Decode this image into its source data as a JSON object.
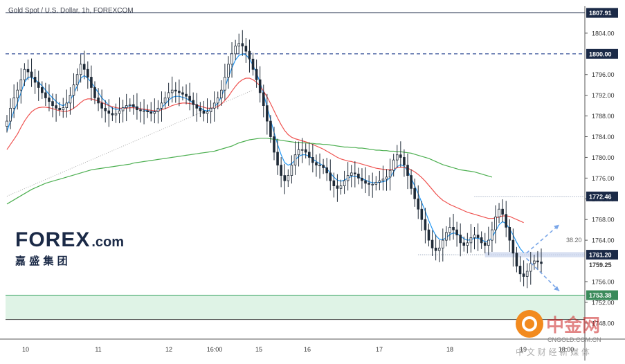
{
  "title": "Gold Spot / U.S. Dollar, 1h, FOREXCOM",
  "brand": {
    "logo_text": "FOREX",
    "logo_suffix": ".com",
    "logo_sub": "嘉 盛 集 团",
    "watermark_main": "中金网",
    "watermark_url": "CNGOLD.COM.CN",
    "watermark_sub": "中 文 财 经 新 媒 体"
  },
  "colors": {
    "bull": "#26a69a",
    "bear": "#26a69a",
    "candle": "#1f2a37",
    "ma_fast": "#2196f3",
    "ma_mid": "#ef5350",
    "ma_slow": "#4caf50",
    "level_box": "#b7e4c7",
    "accent_label": "#1b2a47"
  },
  "chart_data": {
    "type": "candlestick",
    "title": "Gold Spot / U.S. Dollar, 1h, FOREXCOM",
    "xlabel": "",
    "ylabel": "",
    "y_ticks": [
      1748.0,
      1752.0,
      1756.0,
      1759.25,
      1764.0,
      1768.0,
      1772.0,
      1776.0,
      1780.0,
      1784.0,
      1788.0,
      1792.0,
      1796.0,
      1800.0,
      1804.0,
      1807.91
    ],
    "x_ticks": [
      "10",
      "11",
      "12",
      "16:00",
      "15",
      "16",
      "17",
      "18",
      "19",
      "18:00"
    ],
    "ylim": [
      1744.9,
      1809.2
    ],
    "levels": [
      {
        "label": "1807.91",
        "value": 1807.91
      },
      {
        "label": "1800.00",
        "value": 1800.0
      },
      {
        "label": "1772.46",
        "value": 1772.46
      },
      {
        "label": "1761.20",
        "value": 1761.2
      },
      {
        "label": "1759.25",
        "value": 1759.25
      },
      {
        "label": "1753.38",
        "value": 1753.38
      }
    ],
    "annotations": [
      {
        "text": "38.20"
      }
    ],
    "support_zone": [
      1748.7,
      1753.38
    ],
    "close": [
      1787.0,
      1789.5,
      1791.5,
      1793.0,
      1795.0,
      1797.0,
      1796.5,
      1795.5,
      1794.5,
      1793.5,
      1792.5,
      1791.5,
      1790.8,
      1790.0,
      1789.5,
      1789.2,
      1789.6,
      1790.5,
      1792.0,
      1794.0,
      1796.0,
      1798.0,
      1797.0,
      1795.5,
      1793.5,
      1791.5,
      1790.5,
      1789.5,
      1789.0,
      1788.5,
      1788.2,
      1788.5,
      1789.0,
      1789.6,
      1790.0,
      1790.2,
      1789.8,
      1789.2,
      1789.0,
      1789.0,
      1788.8,
      1788.5,
      1788.8,
      1789.5,
      1790.5,
      1791.5,
      1792.5,
      1793.0,
      1792.8,
      1792.5,
      1792.2,
      1791.8,
      1791.0,
      1790.2,
      1789.5,
      1789.0,
      1788.5,
      1788.8,
      1789.5,
      1790.5,
      1791.5,
      1793.0,
      1795.5,
      1798.0,
      1800.0,
      1801.5,
      1802.0,
      1801.5,
      1800.5,
      1799.0,
      1797.0,
      1795.0,
      1792.5,
      1790.0,
      1787.0,
      1784.0,
      1781.0,
      1778.5,
      1776.5,
      1775.5,
      1776.5,
      1778.5,
      1780.5,
      1781.5,
      1781.5,
      1781.0,
      1780.0,
      1779.0,
      1778.5,
      1778.5,
      1778.0,
      1777.0,
      1775.5,
      1774.5,
      1774.0,
      1774.5,
      1775.5,
      1776.5,
      1777.0,
      1776.8,
      1776.0,
      1775.5,
      1775.0,
      1774.8,
      1774.8,
      1775.2,
      1775.5,
      1775.8,
      1776.2,
      1777.5,
      1779.5,
      1780.5,
      1780.0,
      1778.5,
      1776.5,
      1774.0,
      1772.0,
      1770.0,
      1768.0,
      1766.0,
      1764.0,
      1762.5,
      1762.0,
      1762.5,
      1764.0,
      1765.5,
      1766.5,
      1766.0,
      1765.0,
      1763.5,
      1763.0,
      1763.5,
      1764.5,
      1765.0,
      1764.5,
      1763.5,
      1763.0,
      1764.0,
      1766.0,
      1768.5,
      1770.0,
      1769.0,
      1766.5,
      1764.0,
      1761.5,
      1759.0,
      1757.5,
      1757.0,
      1758.0,
      1759.5,
      1760.0,
      1759.8,
      1759.5
    ],
    "series": [
      {
        "name": "",
        "values": [
          1785.0,
          1787.0,
          1789.0,
          1790.5,
          1792.5,
          1794.5,
          1795.5,
          1795.5,
          1795.0,
          1794.5,
          1793.8,
          1793.0,
          1792.2,
          1791.5,
          1790.8,
          1790.2,
          1790.0,
          1790.3,
          1791.0,
          1792.3,
          1793.8,
          1795.3,
          1795.8,
          1795.3,
          1794.5,
          1793.5,
          1792.5,
          1791.5,
          1790.8,
          1790.0,
          1789.5,
          1789.3,
          1789.3,
          1789.5,
          1789.8,
          1790.0,
          1789.9,
          1789.6,
          1789.4,
          1789.2,
          1789.0,
          1788.8,
          1788.8,
          1789.0,
          1789.6,
          1790.3,
          1791.0,
          1791.6,
          1791.8,
          1791.8,
          1791.6,
          1791.4,
          1791.0,
          1790.5,
          1790.0,
          1789.6,
          1789.1,
          1789.0,
          1789.2,
          1789.8,
          1790.5,
          1791.7,
          1793.5,
          1795.5,
          1797.3,
          1798.8,
          1799.7,
          1800.0,
          1799.8,
          1799.0,
          1797.8,
          1796.3,
          1794.5,
          1792.3,
          1789.8,
          1787.3,
          1784.8,
          1782.5,
          1780.5,
          1779.0,
          1778.5,
          1778.8,
          1779.5,
          1780.2,
          1780.5,
          1780.5,
          1780.2,
          1779.7,
          1779.2,
          1778.8,
          1778.4,
          1777.8,
          1777.0,
          1776.2,
          1775.6,
          1775.4,
          1775.6,
          1776.0,
          1776.3,
          1776.4,
          1776.2,
          1775.9,
          1775.6,
          1775.3,
          1775.1,
          1775.1,
          1775.2,
          1775.3,
          1775.5,
          1776.1,
          1777.2,
          1778.2,
          1778.6,
          1778.3,
          1777.4,
          1776.0,
          1774.5,
          1773.0,
          1771.3,
          1769.6,
          1767.8,
          1766.2,
          1764.9,
          1764.2,
          1764.1,
          1764.5,
          1765.1,
          1765.4,
          1765.3,
          1764.8,
          1764.3,
          1764.0,
          1764.1,
          1764.4,
          1764.4,
          1764.1,
          1763.7,
          1763.8,
          1764.5,
          1765.8,
          1767.0,
          1767.6,
          1767.2,
          1766.2,
          1765.0,
          1763.6,
          1762.4,
          1761.6
        ]
      },
      {
        "name": "",
        "values": [
          1781.5,
          1782.5,
          1783.5,
          1784.5,
          1785.8,
          1787.0,
          1788.0,
          1788.8,
          1789.3,
          1789.6,
          1789.7,
          1789.7,
          1789.6,
          1789.4,
          1789.2,
          1789.0,
          1788.9,
          1788.9,
          1789.1,
          1789.5,
          1790.0,
          1790.6,
          1791.1,
          1791.3,
          1791.3,
          1791.1,
          1790.9,
          1790.6,
          1790.3,
          1790.0,
          1789.8,
          1789.6,
          1789.5,
          1789.5,
          1789.5,
          1789.6,
          1789.6,
          1789.5,
          1789.4,
          1789.3,
          1789.2,
          1789.1,
          1789.0,
          1789.0,
          1789.2,
          1789.4,
          1789.7,
          1790.0,
          1790.2,
          1790.4,
          1790.5,
          1790.5,
          1790.4,
          1790.3,
          1790.1,
          1789.9,
          1789.7,
          1789.5,
          1789.5,
          1789.6,
          1789.8,
          1790.3,
          1791.0,
          1791.8,
          1792.8,
          1793.7,
          1794.5,
          1795.0,
          1795.3,
          1795.3,
          1795.0,
          1794.5,
          1793.8,
          1792.8,
          1791.7,
          1790.4,
          1789.0,
          1787.6,
          1786.3,
          1785.2,
          1784.4,
          1783.9,
          1783.6,
          1783.4,
          1783.2,
          1783.0,
          1782.8,
          1782.5,
          1782.2,
          1781.9,
          1781.6,
          1781.2,
          1780.8,
          1780.4,
          1780.0,
          1779.7,
          1779.5,
          1779.3,
          1779.2,
          1779.0,
          1778.9,
          1778.7,
          1778.5,
          1778.3,
          1778.1,
          1777.9,
          1777.8,
          1777.7,
          1777.6,
          1777.6,
          1777.8,
          1778.0,
          1778.1,
          1778.1,
          1777.9,
          1777.6,
          1777.2,
          1776.7,
          1776.1,
          1775.4,
          1774.6,
          1773.8,
          1773.0,
          1772.3,
          1771.7,
          1771.3,
          1770.9,
          1770.6,
          1770.3,
          1770.0,
          1769.7,
          1769.4,
          1769.2,
          1769.0,
          1768.8,
          1768.6,
          1768.4,
          1768.2,
          1768.2,
          1768.3,
          1768.5,
          1768.7,
          1768.7,
          1768.6,
          1768.3,
          1768.0,
          1767.7,
          1767.4
        ]
      },
      {
        "name": "",
        "values": [
          1771.0,
          1771.4,
          1771.8,
          1772.2,
          1772.6,
          1773.0,
          1773.4,
          1773.8,
          1774.1,
          1774.4,
          1774.7,
          1775.0,
          1775.2,
          1775.4,
          1775.6,
          1775.8,
          1776.0,
          1776.2,
          1776.4,
          1776.6,
          1776.8,
          1777.0,
          1777.2,
          1777.4,
          1777.6,
          1777.7,
          1777.8,
          1777.9,
          1778.0,
          1778.1,
          1778.2,
          1778.3,
          1778.4,
          1778.5,
          1778.6,
          1778.7,
          1778.9,
          1779.0,
          1779.1,
          1779.2,
          1779.3,
          1779.4,
          1779.5,
          1779.6,
          1779.7,
          1779.8,
          1779.9,
          1780.0,
          1780.1,
          1780.2,
          1780.3,
          1780.4,
          1780.5,
          1780.6,
          1780.7,
          1780.8,
          1780.9,
          1781.0,
          1781.1,
          1781.2,
          1781.4,
          1781.6,
          1781.8,
          1782.0,
          1782.2,
          1782.5,
          1782.8,
          1783.0,
          1783.2,
          1783.4,
          1783.5,
          1783.6,
          1783.7,
          1783.7,
          1783.7,
          1783.6,
          1783.5,
          1783.4,
          1783.3,
          1783.2,
          1783.1,
          1783.0,
          1782.9,
          1782.9,
          1782.8,
          1782.8,
          1782.7,
          1782.7,
          1782.6,
          1782.6,
          1782.5,
          1782.5,
          1782.4,
          1782.3,
          1782.2,
          1782.1,
          1782.0,
          1782.0,
          1781.9,
          1781.9,
          1781.8,
          1781.8,
          1781.7,
          1781.6,
          1781.5,
          1781.4,
          1781.4,
          1781.3,
          1781.3,
          1781.2,
          1781.2,
          1781.1,
          1781.1,
          1781.0,
          1780.9,
          1780.8,
          1780.6,
          1780.4,
          1780.2,
          1780.0,
          1779.8,
          1779.5,
          1779.2,
          1778.9,
          1778.6,
          1778.4,
          1778.2,
          1778.0,
          1777.8,
          1777.6,
          1777.5,
          1777.4,
          1777.3,
          1777.2,
          1777.0,
          1776.8,
          1776.6,
          1776.4,
          1776.2
        ]
      }
    ]
  }
}
